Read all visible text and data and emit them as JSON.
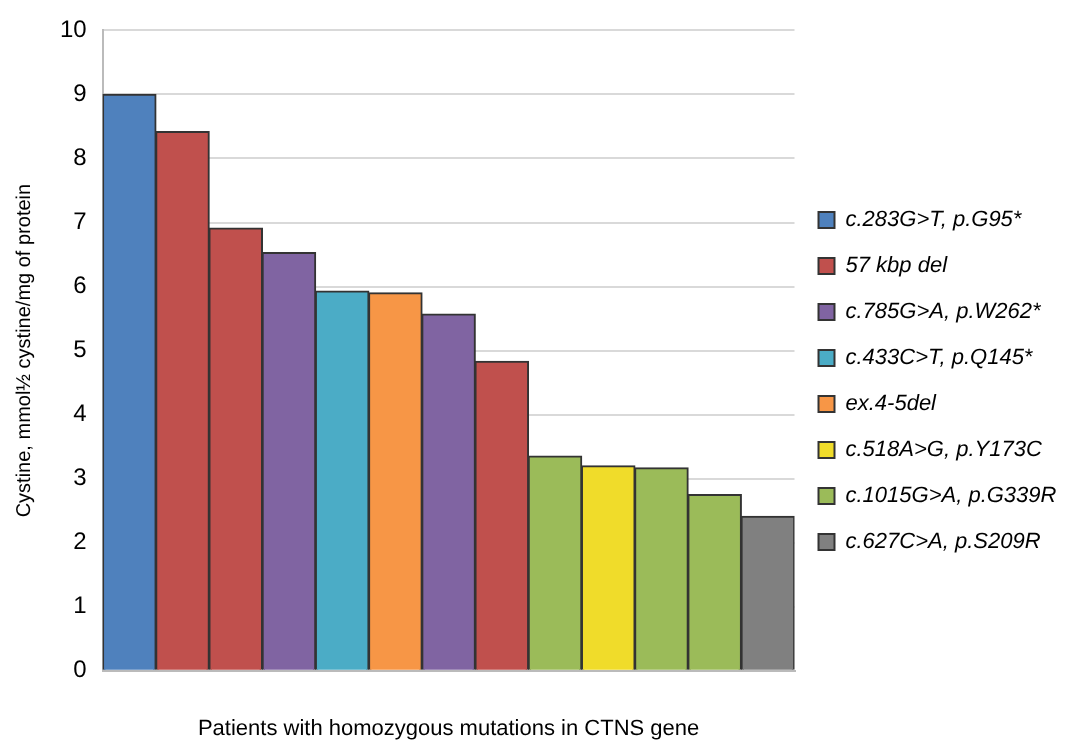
{
  "chart_data": {
    "type": "bar",
    "stacked": true,
    "xlabel": "Patients with homozygous mutations in CTNS gene",
    "ylabel": "Cystine, mmol½ cystine/mg of protein",
    "categories": [
      null,
      null,
      null,
      null,
      null,
      null,
      null,
      null,
      null,
      null,
      null,
      null,
      null
    ],
    "series": [
      {
        "name": "c.283G>T, p.G95*",
        "color": "#4f81bd",
        "values": [
          9.0,
          null,
          null,
          null,
          null,
          null,
          null,
          null,
          null,
          null,
          null,
          null,
          null
        ]
      },
      {
        "name": "57 kbp del",
        "color": "#c0504d",
        "values": [
          null,
          8.42,
          6.91,
          null,
          null,
          null,
          null,
          4.83,
          null,
          null,
          null,
          null,
          null
        ]
      },
      {
        "name": "c.785G>A, p.W262*",
        "color": "#8064a2",
        "values": [
          null,
          null,
          null,
          6.53,
          null,
          null,
          5.57,
          null,
          null,
          null,
          null,
          null,
          null
        ]
      },
      {
        "name": "c.433C>T, p.Q145*",
        "color": "#4bacc6",
        "values": [
          null,
          null,
          null,
          null,
          5.93,
          null,
          null,
          null,
          null,
          null,
          null,
          null,
          null
        ]
      },
      {
        "name": "ex.4-5del",
        "color": "#f79646",
        "values": [
          null,
          null,
          null,
          null,
          null,
          5.9,
          null,
          null,
          null,
          null,
          null,
          null,
          null
        ]
      },
      {
        "name": "c.518A>G, p.Y173C",
        "color": "#f0dc2a",
        "values": [
          null,
          null,
          null,
          null,
          null,
          null,
          null,
          null,
          null,
          3.2,
          null,
          null,
          null
        ]
      },
      {
        "name": "c.1015G>A, p.G339R",
        "color": "#9bbb59",
        "values": [
          null,
          null,
          null,
          null,
          null,
          null,
          null,
          null,
          3.35,
          null,
          3.17,
          2.75,
          null
        ]
      },
      {
        "name": "c.627C>A, p.S209R",
        "color": "#808080",
        "values": [
          null,
          null,
          null,
          null,
          null,
          null,
          null,
          null,
          null,
          null,
          null,
          null,
          2.41
        ]
      }
    ],
    "ylim": [
      0,
      10
    ],
    "yticks": [
      0,
      1,
      2,
      3,
      4,
      5,
      6,
      7,
      8,
      9,
      10
    ],
    "grid": "y",
    "legend": "right"
  }
}
